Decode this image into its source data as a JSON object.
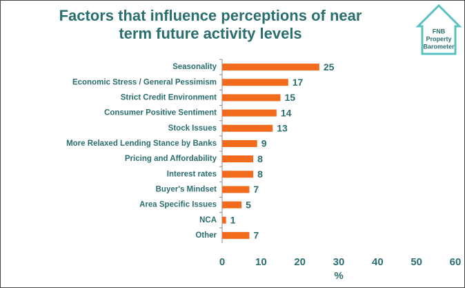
{
  "chart_data": {
    "type": "bar",
    "orientation": "horizontal",
    "title": "Factors that influence perceptions of near term future activity levels",
    "logo": [
      "FNB",
      "Property",
      "Barometer"
    ],
    "categories": [
      "Seasonality",
      "Economic Stress / General Pessimism",
      "Strict Credit Environment",
      "Consumer Positive Sentiment",
      "Stock Issues",
      "More Relaxed Lending Stance by Banks",
      "Pricing and Affordability",
      "Interest rates",
      "Buyer's Mindset",
      "Area Specific Issues",
      "NCA",
      "Other"
    ],
    "values": [
      25,
      17,
      15,
      14,
      13,
      9,
      8,
      8,
      7,
      5,
      1,
      7
    ],
    "color": "#f26b1d",
    "xlabel": "%",
    "xlim": [
      0,
      60
    ],
    "xticks": [
      0,
      10,
      20,
      30,
      40,
      50,
      60
    ]
  }
}
